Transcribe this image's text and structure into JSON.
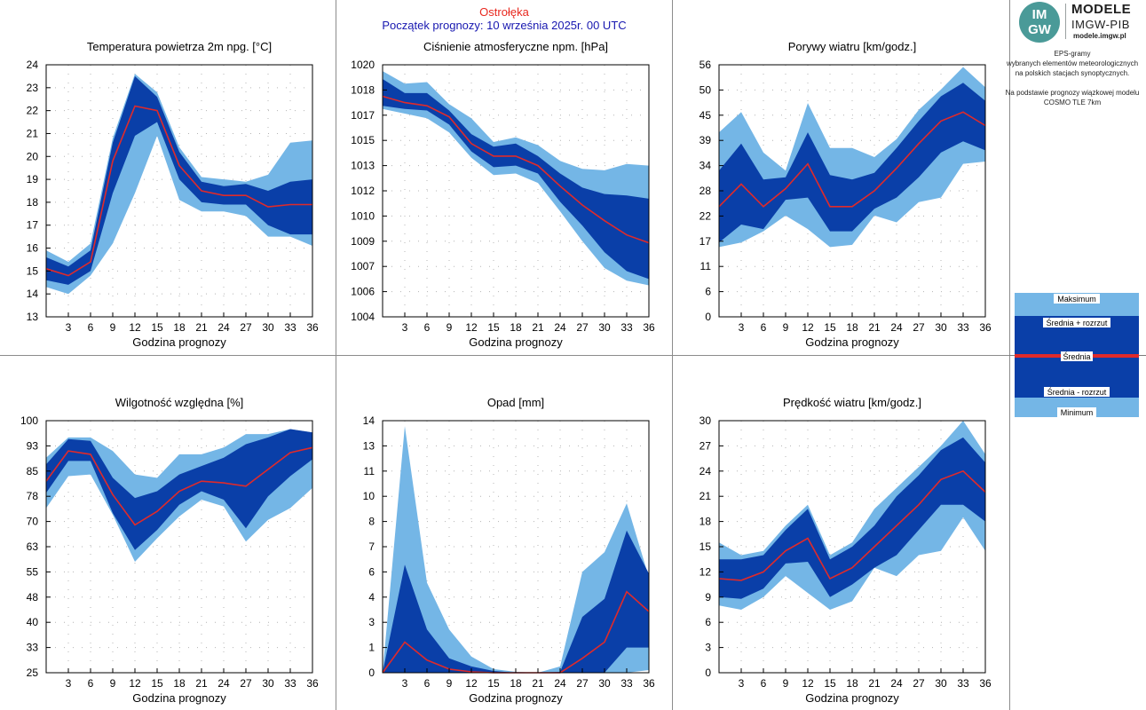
{
  "header": {
    "station": "Ostrołęka",
    "forecast_start": "Początek prognozy: 10 września 2025r. 00 UTC"
  },
  "logo": {
    "line1": "IM",
    "line2": "GW",
    "brand": "MODELE",
    "org": "IMGW-PIB",
    "url": "modele.imgw.pl"
  },
  "info": {
    "line1": "EPS-gramy",
    "line2": "wybranych elementów meteorologicznych",
    "line3": "na polskich stacjach  synoptycznych.",
    "line4": "Na podstawie prognozy wiązkowej modelu",
    "line5": "COSMO TLE 7km"
  },
  "legend": {
    "max": "Maksimum",
    "mean_plus": "Średnia + rozrzut",
    "mean": "Średnia",
    "mean_minus": "Średnia - rozrzut",
    "min": "Minimum"
  },
  "colors": {
    "outer_band": "#74b6e6",
    "inner_band": "#0a3fa8",
    "mean_line": "#e02a2a",
    "grid_dots": "#b4b4b4",
    "station_title": "#e8281e",
    "forecast_title": "#1818b0"
  },
  "chart_data": [
    {
      "type": "area",
      "title": "Temperatura powietrza 2m npg. [°C]",
      "xlabel": "Godzina prognozy",
      "x": [
        0,
        3,
        6,
        9,
        12,
        15,
        18,
        21,
        24,
        27,
        30,
        33,
        36
      ],
      "ylim": [
        13,
        24
      ],
      "yticks": [
        "13",
        "14",
        "15",
        "16",
        "17",
        "18",
        "19",
        "20",
        "21",
        "22",
        "23",
        "24"
      ],
      "series": {
        "max": [
          15.9,
          15.4,
          16.2,
          20.8,
          23.6,
          22.8,
          20.4,
          19.1,
          19.0,
          18.9,
          19.2,
          20.6,
          20.7
        ],
        "mean_plus": [
          15.6,
          15.2,
          15.9,
          20.6,
          23.5,
          22.6,
          20.2,
          18.9,
          18.7,
          18.8,
          18.5,
          18.9,
          19.0
        ],
        "mean": [
          15.1,
          14.8,
          15.4,
          19.8,
          22.2,
          22.0,
          19.6,
          18.5,
          18.3,
          18.3,
          17.8,
          17.9,
          17.9
        ],
        "mean_minus": [
          14.6,
          14.4,
          15.0,
          18.4,
          20.9,
          21.5,
          19.0,
          18.0,
          17.9,
          17.9,
          17.0,
          16.6,
          16.6
        ],
        "min": [
          14.3,
          14.0,
          14.8,
          16.2,
          18.4,
          20.9,
          18.1,
          17.6,
          17.6,
          17.4,
          16.5,
          16.5,
          16.1
        ]
      }
    },
    {
      "type": "area",
      "title": "Ciśnienie atmosferyczne npm. [hPa]",
      "xlabel": "Godzina prognozy",
      "x": [
        0,
        3,
        6,
        9,
        12,
        15,
        18,
        21,
        24,
        27,
        30,
        33,
        36
      ],
      "ylim": [
        1004,
        1020
      ],
      "yticks": [
        "1004",
        "1006",
        "1007",
        "1009",
        "1010",
        "1012",
        "1013",
        "1015",
        "1017",
        "1018",
        "1020"
      ],
      "series": {
        "max": [
          1019.6,
          1018.8,
          1018.9,
          1017.5,
          1016.6,
          1015.1,
          1015.4,
          1014.9,
          1013.9,
          1013.4,
          1013.3,
          1013.7,
          1013.6
        ],
        "mean_plus": [
          1019.1,
          1018.2,
          1018.2,
          1017.1,
          1015.6,
          1014.8,
          1015.0,
          1014.2,
          1013.1,
          1012.2,
          1011.8,
          1011.7,
          1011.5
        ],
        "mean": [
          1018.0,
          1017.6,
          1017.4,
          1016.7,
          1015.0,
          1014.2,
          1014.2,
          1013.6,
          1012.3,
          1011.1,
          1010.1,
          1009.2,
          1008.7
        ],
        "mean_minus": [
          1017.4,
          1017.2,
          1017.1,
          1016.2,
          1014.5,
          1013.5,
          1013.6,
          1013.1,
          1011.3,
          1009.8,
          1008.1,
          1006.9,
          1006.4
        ],
        "min": [
          1017.2,
          1016.9,
          1016.6,
          1015.7,
          1014.1,
          1013.0,
          1013.1,
          1012.5,
          1010.7,
          1008.8,
          1007.1,
          1006.3,
          1006.0
        ]
      }
    },
    {
      "type": "area",
      "title": "Porywy wiatru [km/godz.]",
      "xlabel": "Godzina prognozy",
      "x": [
        0,
        3,
        6,
        9,
        12,
        15,
        18,
        21,
        24,
        27,
        30,
        33,
        36
      ],
      "ylim": [
        0,
        56
      ],
      "yticks": [
        "0",
        "6",
        "11",
        "17",
        "22",
        "28",
        "34",
        "39",
        "45",
        "50",
        "56"
      ],
      "series": {
        "max": [
          41,
          45.5,
          36.5,
          32.5,
          47.5,
          37.5,
          37.5,
          35.5,
          39.5,
          46,
          50.5,
          55.5,
          51
        ],
        "mean_plus": [
          32.5,
          38.5,
          30.5,
          31,
          41,
          31.5,
          30.5,
          32,
          37.5,
          43.5,
          49,
          52,
          48
        ],
        "mean": [
          24.5,
          29.5,
          24.5,
          28.5,
          34,
          24.5,
          24.5,
          28,
          33,
          38.5,
          43.5,
          45.5,
          42.5
        ],
        "mean_minus": [
          16.5,
          20.5,
          19.5,
          26,
          26.5,
          19,
          19,
          24,
          26.5,
          31,
          36.5,
          39,
          37
        ],
        "min": [
          15.5,
          16.5,
          19,
          22.5,
          19.5,
          15.5,
          16,
          22.5,
          21,
          25.5,
          26.5,
          34,
          34.5
        ]
      }
    },
    {
      "type": "area",
      "title": "Wilgotność względna [%]",
      "xlabel": "Godzina prognozy",
      "x": [
        0,
        3,
        6,
        9,
        12,
        15,
        18,
        21,
        24,
        27,
        30,
        33,
        36
      ],
      "ylim": [
        25,
        100
      ],
      "yticks": [
        "25",
        "33",
        "40",
        "48",
        "55",
        "63",
        "70",
        "78",
        "85",
        "93",
        "100"
      ],
      "series": {
        "max": [
          89,
          95,
          95,
          91,
          84,
          83,
          90,
          90,
          92,
          96,
          96,
          97.5,
          96.5
        ],
        "mean_plus": [
          87,
          94.5,
          94,
          83,
          77,
          79,
          84,
          86.5,
          89,
          93,
          95,
          97.5,
          96.5
        ],
        "mean": [
          82,
          91,
          90,
          78,
          69,
          73,
          79,
          82,
          81.5,
          80.5,
          85.5,
          90.5,
          92
        ],
        "mean_minus": [
          78.5,
          88,
          88,
          72.5,
          61.5,
          67.5,
          75,
          79,
          76.5,
          68,
          77.5,
          83.5,
          88.5
        ],
        "min": [
          74,
          83.5,
          84,
          72,
          58,
          65,
          71.5,
          76.5,
          74.5,
          64,
          70.5,
          74,
          80
        ]
      }
    },
    {
      "type": "area",
      "title": "Opad [mm]",
      "xlabel": "Godzina prognozy",
      "x": [
        0,
        3,
        6,
        9,
        12,
        15,
        18,
        21,
        24,
        27,
        30,
        33,
        36
      ],
      "ylim": [
        0,
        14
      ],
      "yticks": [
        "0",
        "1",
        "3",
        "4",
        "6",
        "7",
        "8",
        "10",
        "11",
        "13",
        "14"
      ],
      "series": {
        "max": [
          0,
          13.7,
          5.0,
          2.4,
          0.9,
          0.2,
          0.05,
          0,
          0.35,
          5.6,
          6.7,
          9.4,
          5.3
        ],
        "mean_plus": [
          0,
          6.0,
          2.4,
          0.8,
          0.35,
          0.1,
          0,
          0,
          0.05,
          3.1,
          4.1,
          7.9,
          5.5
        ],
        "mean": [
          0,
          1.7,
          0.7,
          0.2,
          0.05,
          0,
          0,
          0,
          0,
          0.8,
          1.7,
          4.5,
          3.4
        ],
        "mean_minus": [
          0,
          0,
          0,
          0,
          0,
          0,
          0,
          0,
          0,
          0,
          0,
          1.4,
          1.4
        ],
        "min": [
          0,
          0,
          0,
          0,
          0,
          0,
          0,
          0,
          0,
          0,
          0,
          0,
          0.15
        ]
      }
    },
    {
      "type": "area",
      "title": "Prędkość wiatru [km/godz.]",
      "xlabel": "Godzina prognozy",
      "x": [
        0,
        3,
        6,
        9,
        12,
        15,
        18,
        21,
        24,
        27,
        30,
        33,
        36
      ],
      "ylim": [
        0,
        30
      ],
      "yticks": [
        "0",
        "3",
        "6",
        "9",
        "12",
        "15",
        "18",
        "21",
        "24",
        "27",
        "30"
      ],
      "series": {
        "max": [
          15.5,
          14.0,
          14.5,
          17.5,
          20.0,
          14.0,
          15.5,
          19.5,
          22.0,
          24.5,
          27.0,
          30.0,
          26.0
        ],
        "mean_plus": [
          13.5,
          13.5,
          14.0,
          17.0,
          19.5,
          13.5,
          15.0,
          17.5,
          21.0,
          23.5,
          26.5,
          28.0,
          25.0
        ],
        "mean": [
          11.2,
          11.0,
          12.0,
          14.5,
          16.0,
          11.2,
          12.5,
          15.0,
          17.5,
          20.0,
          23.0,
          24.0,
          21.5
        ],
        "mean_minus": [
          9.0,
          8.8,
          10.0,
          13.0,
          13.2,
          9.0,
          10.5,
          12.5,
          14.0,
          17.0,
          20.0,
          20.0,
          18.0
        ],
        "min": [
          8.0,
          7.5,
          9.0,
          11.5,
          9.5,
          7.5,
          8.5,
          12.5,
          11.5,
          14.0,
          14.5,
          18.5,
          14.5
        ]
      }
    }
  ]
}
